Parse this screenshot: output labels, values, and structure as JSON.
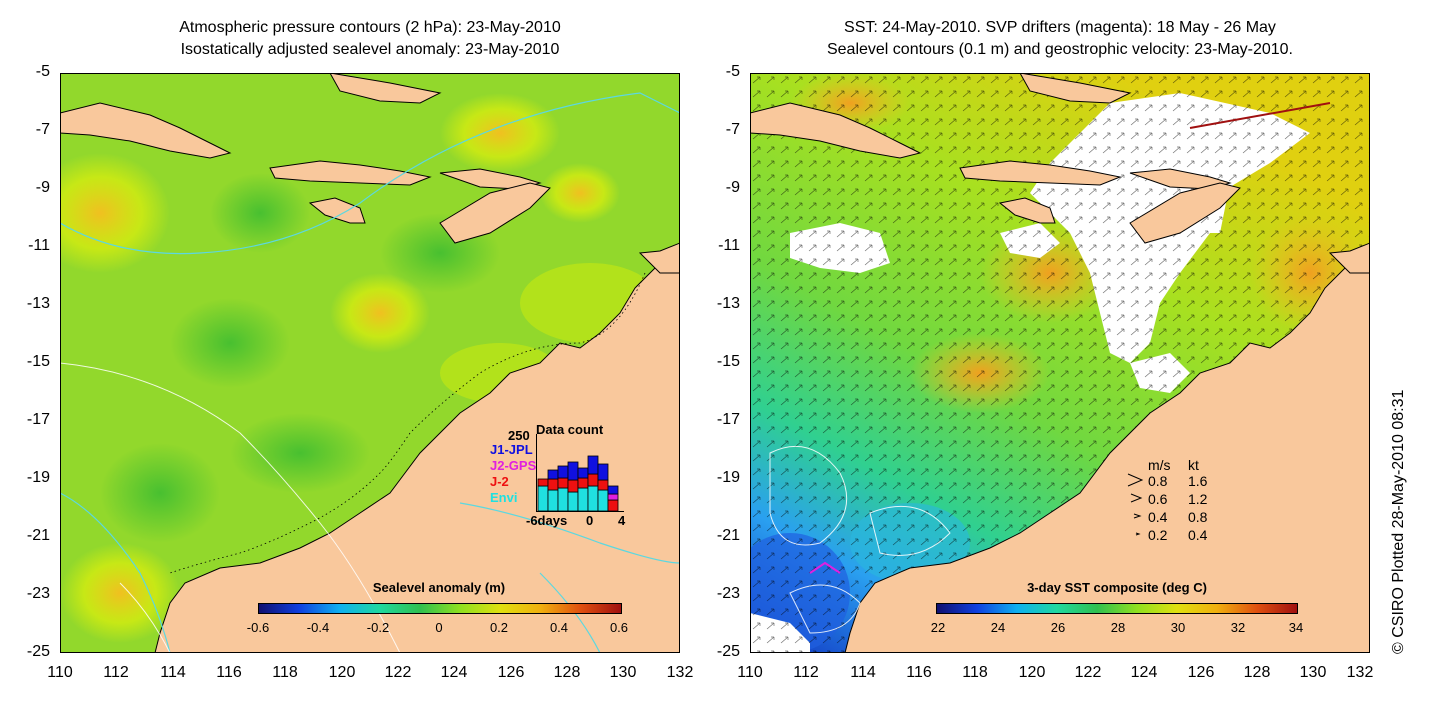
{
  "left_panel": {
    "title_line1": "Atmospheric pressure contours (2 hPa): 23-May-2010",
    "title_line2": "Isostatically adjusted sealevel anomaly: 23-May-2010",
    "lat_labels": [
      "-5",
      "-7",
      "-9",
      "-11",
      "-13",
      "-15",
      "-17",
      "-19",
      "-21",
      "-23",
      "-25"
    ],
    "lon_labels": [
      "110",
      "112",
      "114",
      "116",
      "118",
      "120",
      "122",
      "124",
      "126",
      "128",
      "130",
      "132"
    ],
    "colorbar_title": "Sealevel anomaly (m)",
    "colorbar_ticks": [
      "-0.6",
      "-0.4",
      "-0.2",
      "0",
      "0.2",
      "0.4",
      "0.6"
    ],
    "inset": {
      "top_label": "250",
      "title": "Data count",
      "series": [
        {
          "name": "J1-JPL",
          "color": "#1010e0"
        },
        {
          "name": "J2-GPS",
          "color": "#e020e0"
        },
        {
          "name": "J-2",
          "color": "#ee1010"
        },
        {
          "name": "Envi",
          "color": "#20e0e0"
        }
      ],
      "x_left": "-6days",
      "x_mid": "0",
      "x_right": "4"
    }
  },
  "right_panel": {
    "title_line1": "SST: 24-May-2010. SVP drifters (magenta): 18 May - 26 May",
    "title_line2": "Sealevel contours (0.1 m) and geostrophic velocity: 23-May-2010.",
    "lat_labels": [
      "-5",
      "-7",
      "-9",
      "-11",
      "-13",
      "-15",
      "-17",
      "-19",
      "-21",
      "-23",
      "-25"
    ],
    "lon_labels": [
      "110",
      "112",
      "114",
      "116",
      "118",
      "120",
      "122",
      "124",
      "126",
      "128",
      "130",
      "132"
    ],
    "colorbar_title": "3-day SST composite (deg C)",
    "colorbar_ticks": [
      "22",
      "24",
      "26",
      "28",
      "30",
      "32",
      "34"
    ],
    "speed_legend": {
      "header_ms": "m/s",
      "header_kt": "kt",
      "rows": [
        {
          "ms": "0.8",
          "kt": "1.6"
        },
        {
          "ms": "0.6",
          "kt": "1.2"
        },
        {
          "ms": "0.4",
          "kt": "0.8"
        },
        {
          "ms": "0.2",
          "kt": "0.4"
        }
      ]
    }
  },
  "credit": "© CSIRO Plotted 28-May-2010 08:31",
  "colors": {
    "land": "#f9c89c",
    "sea_green": "#8ed62a",
    "sea_yellow": "#d4ec10",
    "sst_green": "#6cd84a",
    "sst_cool": "#2a9ef0"
  }
}
